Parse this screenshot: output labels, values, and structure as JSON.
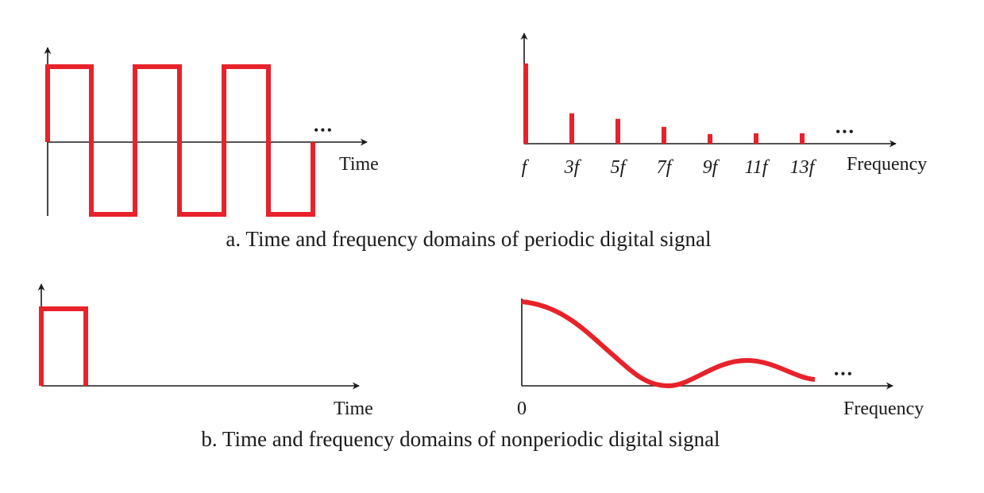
{
  "colors": {
    "signal": "#e8222a",
    "axis": "#1a1a1a",
    "background": "#ffffff"
  },
  "panel_a": {
    "time": {
      "axis_label": "Time",
      "ellipsis": "•••"
    },
    "frequency": {
      "axis_label": "Frequency",
      "ellipsis": "•••",
      "harmonics": [
        {
          "label": "f",
          "amplitude": 1.0
        },
        {
          "label": "3f",
          "amplitude": 0.38
        },
        {
          "label": "5f",
          "amplitude": 0.31
        },
        {
          "label": "7f",
          "amplitude": 0.21
        },
        {
          "label": "9f",
          "amplitude": 0.12
        },
        {
          "label": "11f",
          "amplitude": 0.13
        },
        {
          "label": "13f",
          "amplitude": 0.13
        }
      ]
    },
    "caption": "a. Time and frequency domains of periodic digital signal"
  },
  "panel_b": {
    "time": {
      "axis_label": "Time"
    },
    "frequency": {
      "axis_label": "Frequency",
      "origin_label": "0",
      "ellipsis": "•••"
    },
    "caption": "b. Time and frequency domains of nonperiodic digital signal"
  }
}
